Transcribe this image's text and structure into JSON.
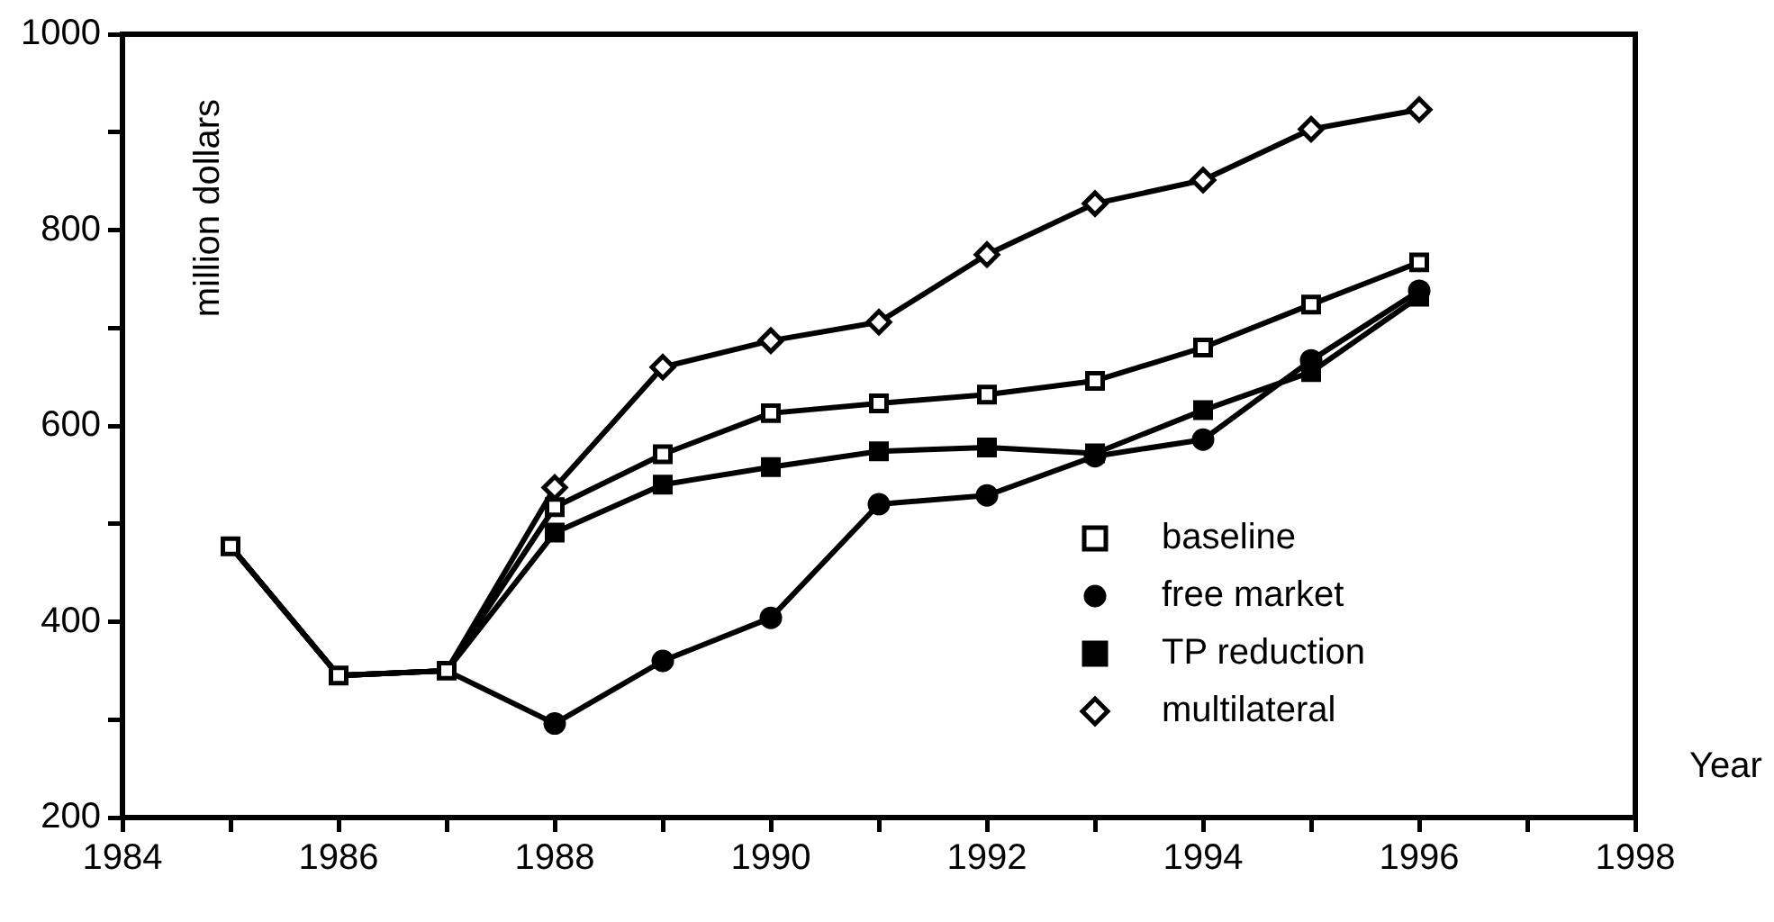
{
  "chart_data": {
    "type": "line",
    "xlabel": "Year",
    "ylabel": "million dollars",
    "x": [
      1985,
      1986,
      1987,
      1988,
      1989,
      1990,
      1991,
      1992,
      1993,
      1994,
      1995,
      1996
    ],
    "series": [
      {
        "name": "baseline",
        "color": "#000000",
        "marker": "square",
        "values": [
          477,
          345,
          350,
          517,
          571,
          613,
          623,
          632,
          646,
          680,
          724,
          767
        ]
      },
      {
        "name": "free market",
        "color": "#000000",
        "marker": "circle",
        "values": [
          477,
          345,
          350,
          296,
          360,
          404,
          520,
          529,
          569,
          586,
          667,
          738
        ]
      },
      {
        "name": "TP reduction",
        "color": "#000000",
        "marker": "square",
        "values": [
          477,
          345,
          350,
          491,
          540,
          558,
          574,
          578,
          572,
          616,
          655,
          732
        ]
      },
      {
        "name": "multilateral",
        "color": "#000000",
        "marker": "diamond",
        "values": [
          477,
          345,
          350,
          537,
          660,
          687,
          706,
          775,
          827,
          851,
          903,
          923
        ]
      }
    ],
    "xlim": [
      1984,
      1998
    ],
    "xticks": [
      1984,
      {
        "value": 1985,
        "label": null
      },
      1986,
      {
        "value": 1987,
        "label": null
      },
      1988,
      {
        "value": 1989,
        "label": null
      },
      1990,
      {
        "value": 1991,
        "label": null
      },
      1992,
      {
        "value": 1993,
        "label": null
      },
      1994,
      {
        "value": 1995,
        "label": null
      },
      1996,
      {
        "value": 1997,
        "label": null
      },
      1998
    ],
    "ylim": [
      200,
      1000
    ],
    "yticks": [
      200,
      {
        "value": 300,
        "label": null
      },
      400,
      {
        "value": 500,
        "label": null
      },
      600,
      {
        "value": 700,
        "label": null
      },
      800,
      {
        "value": 900,
        "label": null
      },
      1000
    ],
    "legend": "bottom right",
    "line_style": "solid"
  }
}
